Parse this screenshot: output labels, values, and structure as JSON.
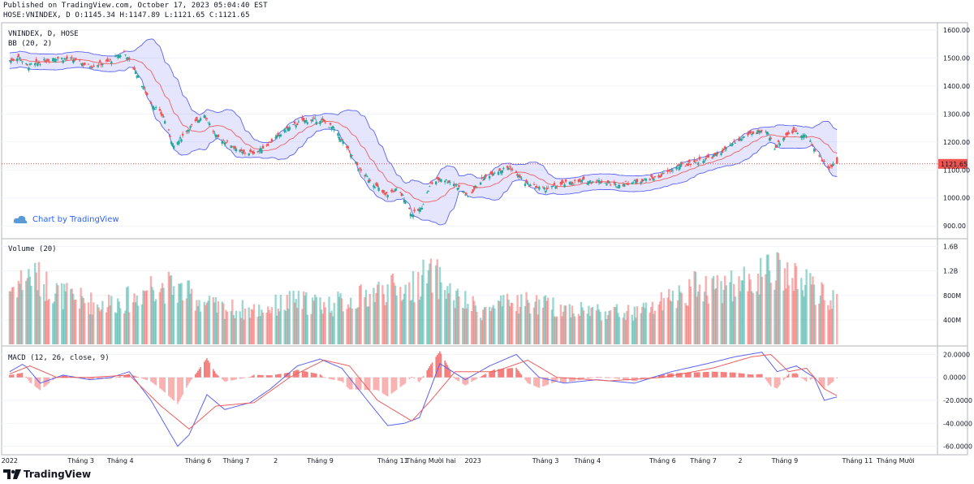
{
  "header": {
    "published": "Published on TradingView.com, October 17, 2023 05:04:40 EST",
    "quote_prefix": "HOSE:VNINDEX, D",
    "open": "O:1145.34",
    "high": "H:1147.89",
    "low": "L:1121.65",
    "close": "C:1121.65"
  },
  "watermark": "Chart by TradingView",
  "brand": "TradingView",
  "colors": {
    "up": "#26a69a",
    "down": "#ef5350",
    "bb": "#5b63f0",
    "basis": "#ec5f5f",
    "macd": "#5b63f0",
    "signal": "#ec5f5f",
    "grid": "#f0f3fa",
    "last": "#ef5350"
  },
  "chart_data": [
    {
      "type": "candlestick",
      "title": "VNINDEX, D, HOSE",
      "indicator": "BB (20, 2)",
      "last_price_label": "1121.65",
      "ylim": [
        860,
        1620
      ],
      "yticks": [
        "900.00",
        "1000.00",
        "1100.00",
        "1200.00",
        "1300.00",
        "1400.00",
        "1500.00",
        "1600.00"
      ],
      "close_path": [
        [
          "2022-01-04",
          1490
        ],
        [
          "2022-01-11",
          1505
        ],
        [
          "2022-01-18",
          1470
        ],
        [
          "2022-01-25",
          1480
        ],
        [
          "2022-02-08",
          1500
        ],
        [
          "2022-02-22",
          1495
        ],
        [
          "2022-03-08",
          1470
        ],
        [
          "2022-03-22",
          1485
        ],
        [
          "2022-04-04",
          1520
        ],
        [
          "2022-04-12",
          1460
        ],
        [
          "2022-04-25",
          1340
        ],
        [
          "2022-05-05",
          1290
        ],
        [
          "2022-05-13",
          1180
        ],
        [
          "2022-05-23",
          1240
        ],
        [
          "2022-06-06",
          1300
        ],
        [
          "2022-06-15",
          1220
        ],
        [
          "2022-06-27",
          1190
        ],
        [
          "2022-07-06",
          1160
        ],
        [
          "2022-07-18",
          1165
        ],
        [
          "2022-07-28",
          1200
        ],
        [
          "2022-08-08",
          1240
        ],
        [
          "2022-08-22",
          1275
        ],
        [
          "2022-09-05",
          1280
        ],
        [
          "2022-09-15",
          1250
        ],
        [
          "2022-09-26",
          1180
        ],
        [
          "2022-10-06",
          1100
        ],
        [
          "2022-10-17",
          1050
        ],
        [
          "2022-10-26",
          1010
        ],
        [
          "2022-11-04",
          1030
        ],
        [
          "2022-11-10",
          1000
        ],
        [
          "2022-11-16",
          940
        ],
        [
          "2022-11-23",
          960
        ],
        [
          "2022-12-01",
          1050
        ],
        [
          "2022-12-09",
          1070
        ],
        [
          "2022-12-20",
          1050
        ],
        [
          "2022-12-30",
          1005
        ],
        [
          "2023-01-09",
          1060
        ],
        [
          "2023-01-18",
          1090
        ],
        [
          "2023-02-01",
          1110
        ],
        [
          "2023-02-14",
          1050
        ],
        [
          "2023-02-28",
          1030
        ],
        [
          "2023-03-15",
          1050
        ],
        [
          "2023-03-30",
          1060
        ],
        [
          "2023-04-12",
          1060
        ],
        [
          "2023-04-26",
          1045
        ],
        [
          "2023-05-12",
          1060
        ],
        [
          "2023-05-29",
          1075
        ],
        [
          "2023-06-12",
          1110
        ],
        [
          "2023-06-28",
          1130
        ],
        [
          "2023-07-12",
          1150
        ],
        [
          "2023-07-26",
          1190
        ],
        [
          "2023-08-08",
          1230
        ],
        [
          "2023-08-22",
          1235
        ],
        [
          "2023-08-28",
          1180
        ],
        [
          "2023-09-06",
          1225
        ],
        [
          "2023-09-13",
          1240
        ],
        [
          "2023-09-22",
          1220
        ],
        [
          "2023-10-02",
          1150
        ],
        [
          "2023-10-09",
          1110
        ],
        [
          "2023-10-16",
          1121.65
        ]
      ]
    },
    {
      "type": "bar",
      "title": "Volume (20)",
      "ylim": [
        0,
        1700
      ],
      "yticks": [
        "400M",
        "800M",
        "1.2B",
        "1.6B"
      ],
      "volume_path": [
        [
          "2022-01-04",
          900
        ],
        [
          "2022-01-20",
          1150
        ],
        [
          "2022-02-15",
          800
        ],
        [
          "2022-03-15",
          650
        ],
        [
          "2022-04-12",
          750
        ],
        [
          "2022-04-26",
          1000
        ],
        [
          "2022-05-16",
          900
        ],
        [
          "2022-06-15",
          600
        ],
        [
          "2022-07-15",
          550
        ],
        [
          "2022-08-15",
          700
        ],
        [
          "2022-09-15",
          650
        ],
        [
          "2022-10-05",
          750
        ],
        [
          "2022-10-25",
          900
        ],
        [
          "2022-11-15",
          900
        ],
        [
          "2022-11-25",
          1100
        ],
        [
          "2022-12-05",
          1100
        ],
        [
          "2022-12-20",
          750
        ],
        [
          "2023-01-10",
          550
        ],
        [
          "2023-02-10",
          700
        ],
        [
          "2023-03-10",
          600
        ],
        [
          "2023-04-10",
          550
        ],
        [
          "2023-05-10",
          500
        ],
        [
          "2023-06-05",
          700
        ],
        [
          "2023-06-26",
          950
        ],
        [
          "2023-07-26",
          950
        ],
        [
          "2023-08-15",
          1100
        ],
        [
          "2023-08-28",
          1200
        ],
        [
          "2023-09-15",
          1050
        ],
        [
          "2023-09-28",
          900
        ],
        [
          "2023-10-16",
          650
        ]
      ]
    },
    {
      "type": "line",
      "title": "MACD (12, 26, close, 9)",
      "ylim": [
        -66,
        26
      ],
      "yticks": [
        "-60.0000",
        "-40.0000",
        "-20.0000",
        "0.0000",
        "20.0000"
      ],
      "macd_path": [
        [
          "2022-01-04",
          5
        ],
        [
          "2022-01-15",
          12
        ],
        [
          "2022-01-28",
          -5
        ],
        [
          "2022-02-15",
          2
        ],
        [
          "2022-03-08",
          -2
        ],
        [
          "2022-03-25",
          0
        ],
        [
          "2022-04-08",
          5
        ],
        [
          "2022-04-25",
          -20
        ],
        [
          "2022-05-16",
          -60
        ],
        [
          "2022-05-25",
          -50
        ],
        [
          "2022-06-08",
          -15
        ],
        [
          "2022-06-22",
          -28
        ],
        [
          "2022-07-12",
          -22
        ],
        [
          "2022-07-28",
          -10
        ],
        [
          "2022-08-18",
          10
        ],
        [
          "2022-09-05",
          16
        ],
        [
          "2022-09-22",
          8
        ],
        [
          "2022-10-12",
          -20
        ],
        [
          "2022-10-28",
          -42
        ],
        [
          "2022-11-10",
          -40
        ],
        [
          "2022-11-22",
          -35
        ],
        [
          "2022-12-08",
          12
        ],
        [
          "2022-12-28",
          -2
        ],
        [
          "2023-01-16",
          10
        ],
        [
          "2023-02-06",
          20
        ],
        [
          "2023-02-24",
          0
        ],
        [
          "2023-03-16",
          -5
        ],
        [
          "2023-04-10",
          -2
        ],
        [
          "2023-05-10",
          -5
        ],
        [
          "2023-06-08",
          5
        ],
        [
          "2023-07-06",
          12
        ],
        [
          "2023-07-28",
          18
        ],
        [
          "2023-08-18",
          22
        ],
        [
          "2023-08-30",
          5
        ],
        [
          "2023-09-14",
          10
        ],
        [
          "2023-09-28",
          0
        ],
        [
          "2023-10-06",
          -20
        ],
        [
          "2023-10-16",
          -17
        ]
      ],
      "signal_path": [
        [
          "2022-01-04",
          3
        ],
        [
          "2022-01-20",
          10
        ],
        [
          "2022-02-10",
          0
        ],
        [
          "2022-03-08",
          0
        ],
        [
          "2022-04-08",
          2
        ],
        [
          "2022-05-03",
          -25
        ],
        [
          "2022-05-25",
          -45
        ],
        [
          "2022-06-15",
          -25
        ],
        [
          "2022-07-15",
          -22
        ],
        [
          "2022-08-12",
          0
        ],
        [
          "2022-09-08",
          15
        ],
        [
          "2022-09-28",
          10
        ],
        [
          "2022-10-20",
          -20
        ],
        [
          "2022-11-16",
          -38
        ],
        [
          "2022-12-01",
          -20
        ],
        [
          "2022-12-20",
          5
        ],
        [
          "2023-01-20",
          5
        ],
        [
          "2023-02-15",
          15
        ],
        [
          "2023-03-10",
          0
        ],
        [
          "2023-04-20",
          -3
        ],
        [
          "2023-06-01",
          0
        ],
        [
          "2023-07-10",
          8
        ],
        [
          "2023-08-10",
          18
        ],
        [
          "2023-08-25",
          20
        ],
        [
          "2023-09-08",
          5
        ],
        [
          "2023-09-22",
          8
        ],
        [
          "2023-10-06",
          -10
        ],
        [
          "2023-10-16",
          -16
        ]
      ]
    }
  ],
  "x_axis_labels": [
    [
      "2022-01-04",
      "2022"
    ],
    [
      "2022-03-01",
      "Tháng 3"
    ],
    [
      "2022-04-01",
      "Tháng 4"
    ],
    [
      "2022-06-01",
      "Tháng 6"
    ],
    [
      "2022-07-01",
      "Tháng 7"
    ],
    [
      "2022-08-01",
      "2"
    ],
    [
      "2022-09-05",
      "Tháng 9"
    ],
    [
      "2022-11-01",
      "Tháng 11"
    ],
    [
      "2022-12-01",
      "Tháng Mười hai"
    ],
    [
      "2023-01-03",
      "2023"
    ],
    [
      "2023-03-01",
      "Tháng 3"
    ],
    [
      "2023-04-03",
      "Tháng 4"
    ],
    [
      "2023-06-01",
      "Tháng 6"
    ],
    [
      "2023-07-03",
      "Tháng 7"
    ],
    [
      "2023-08-01",
      "2"
    ],
    [
      "2023-09-05",
      "Tháng 9"
    ],
    [
      "2023-11-01",
      "Tháng 11"
    ],
    [
      "2023-12-01",
      "Tháng Mười"
    ]
  ],
  "x_range": [
    "2021-12-30",
    "2024-01-01"
  ]
}
